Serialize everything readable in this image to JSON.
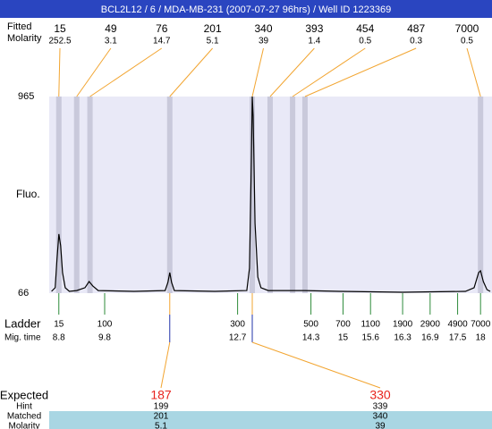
{
  "chart_data": {
    "type": "electropherogram",
    "title": "BCL2L12 / 6 / MDA-MB-231 (2007-07-27 96hrs) / Well ID 1223369",
    "y_label": "Fluo.",
    "ylim": [
      66,
      965
    ],
    "yticks": [
      66,
      965
    ],
    "xlim": [
      8.59,
      18.25
    ],
    "color": "#000000",
    "x": [
      8.64,
      8.72,
      8.76,
      8.8,
      8.84,
      8.88,
      8.94,
      9.03,
      9.19,
      9.37,
      9.46,
      9.54,
      9.66,
      10.44,
      11.12,
      11.18,
      11.22,
      11.26,
      11.32,
      12.2,
      12.9,
      12.96,
      13.0,
      13.02,
      13.04,
      13.08,
      13.14,
      13.21,
      13.37,
      14.17,
      14.93,
      16.3,
      17.67,
      17.86,
      17.96,
      18.0,
      18.06,
      18.14,
      18.21
    ],
    "values": [
      74,
      91,
      221,
      336,
      283,
      160,
      91,
      74,
      78,
      91,
      119,
      99,
      78,
      74,
      78,
      115,
      160,
      115,
      78,
      74,
      78,
      180,
      671,
      965,
      875,
      385,
      140,
      91,
      78,
      78,
      74,
      70,
      74,
      91,
      160,
      168,
      119,
      82,
      74
    ],
    "peaks": {
      "row_labels": [
        "Fitted",
        "Molarity"
      ],
      "sizes": [
        15,
        49,
        76,
        201,
        340,
        393,
        454,
        487,
        7000
      ],
      "molarity": [
        252.5,
        3.1,
        14.7,
        5.1,
        39,
        1.4,
        0.5,
        0.3,
        0.5
      ],
      "times": [
        8.8,
        9.19,
        9.48,
        11.22,
        13.02,
        13.41,
        13.9,
        14.17,
        18.0
      ]
    },
    "ladder": {
      "row_labels": [
        "Ladder",
        "Mig. time"
      ],
      "sizes": [
        15,
        100,
        300,
        500,
        700,
        1100,
        1900,
        2900,
        4900,
        7000
      ],
      "times": [
        8.8,
        9.8,
        12.7,
        14.3,
        15,
        15.6,
        16.3,
        16.9,
        17.5,
        18
      ]
    },
    "results": {
      "row_labels": [
        "Expected",
        "Hint",
        "Matched",
        "Molarity"
      ],
      "expected": [
        187,
        330
      ],
      "hint": [
        199,
        339
      ],
      "matched": [
        201,
        340
      ],
      "molarity": [
        5.1,
        39
      ]
    }
  }
}
